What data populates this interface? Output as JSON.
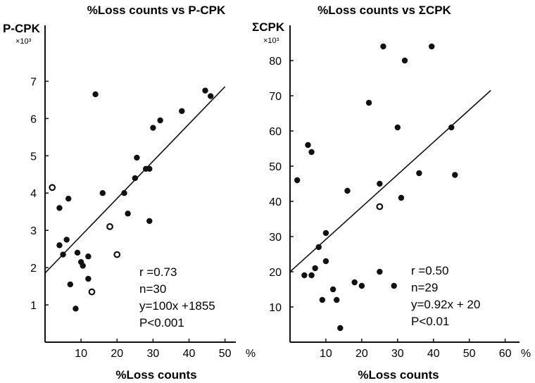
{
  "chart_data": [
    {
      "type": "scatter",
      "title": "%Loss counts vs P-CPK",
      "ylabel": "P-CPK",
      "ylabel_multiplier": "×10³",
      "xlabel": "%Loss counts",
      "x_unit": "%",
      "xlim": [
        0,
        53
      ],
      "ylim": [
        0,
        8.5
      ],
      "x_ticks": [
        "10",
        "20",
        "30",
        "40",
        "50"
      ],
      "x_tick_values": [
        10,
        20,
        30,
        40,
        50
      ],
      "y_ticks": [
        "1",
        "2",
        "3",
        "4",
        "5",
        "6",
        "7"
      ],
      "y_tick_values": [
        1,
        2,
        3,
        4,
        5,
        6,
        7
      ],
      "regression": {
        "slope": 0.1,
        "intercept": 1.855
      },
      "stats": [
        "r =0.73",
        "n=30",
        "y=100x +1855",
        "P<0.001"
      ],
      "points_solid": [
        [
          4,
          3.6
        ],
        [
          6.5,
          3.85
        ],
        [
          4,
          2.6
        ],
        [
          5,
          2.35
        ],
        [
          6,
          2.75
        ],
        [
          7,
          1.55
        ],
        [
          8.5,
          0.9
        ],
        [
          9,
          2.4
        ],
        [
          10,
          2.15
        ],
        [
          10.5,
          2.05
        ],
        [
          12,
          2.3
        ],
        [
          12,
          1.7
        ],
        [
          14,
          6.65
        ],
        [
          16,
          4.0
        ],
        [
          22,
          4.0
        ],
        [
          23,
          3.45
        ],
        [
          25,
          4.4
        ],
        [
          25.5,
          4.95
        ],
        [
          28,
          4.65
        ],
        [
          29,
          4.65
        ],
        [
          29,
          3.25
        ],
        [
          30,
          5.75
        ],
        [
          32,
          5.95
        ],
        [
          38,
          6.2
        ],
        [
          44.5,
          6.75
        ],
        [
          46,
          6.6
        ]
      ],
      "points_open": [
        [
          2,
          4.15
        ],
        [
          13,
          1.35
        ],
        [
          18,
          3.1
        ],
        [
          20,
          2.35
        ]
      ]
    },
    {
      "type": "scatter",
      "title": "%Loss counts vs ΣCPK",
      "ylabel": "ΣCPK",
      "ylabel_multiplier": "×10³",
      "xlabel": "%Loss counts",
      "x_unit": "%",
      "xlim": [
        0,
        64
      ],
      "ylim": [
        0,
        90
      ],
      "x_ticks": [
        "10",
        "20",
        "30",
        "40",
        "50",
        "60"
      ],
      "x_tick_values": [
        10,
        20,
        30,
        40,
        50,
        60
      ],
      "y_ticks": [
        "10",
        "20",
        "30",
        "40",
        "50",
        "60",
        "70",
        "80"
      ],
      "y_tick_values": [
        10,
        20,
        30,
        40,
        50,
        60,
        70,
        80
      ],
      "regression": {
        "slope": 0.92,
        "intercept": 20
      },
      "stats": [
        "r =0.50",
        "n=29",
        "y=0.92x + 20",
        "P<0.01"
      ],
      "points_solid": [
        [
          2,
          46
        ],
        [
          4,
          19
        ],
        [
          5,
          56
        ],
        [
          6,
          19
        ],
        [
          6,
          54
        ],
        [
          7,
          21
        ],
        [
          8,
          27
        ],
        [
          9,
          12
        ],
        [
          10,
          23
        ],
        [
          10,
          31
        ],
        [
          12,
          15
        ],
        [
          13,
          12
        ],
        [
          14,
          4
        ],
        [
          16,
          43
        ],
        [
          18,
          17
        ],
        [
          20,
          16
        ],
        [
          22,
          68
        ],
        [
          25,
          45
        ],
        [
          25,
          20
        ],
        [
          26,
          84
        ],
        [
          29,
          16
        ],
        [
          30,
          61
        ],
        [
          31,
          41
        ],
        [
          32,
          80
        ],
        [
          36,
          48
        ],
        [
          39.5,
          84
        ],
        [
          45,
          61
        ],
        [
          46,
          47.5
        ]
      ],
      "points_open": [
        [
          25,
          38.5
        ]
      ]
    }
  ]
}
